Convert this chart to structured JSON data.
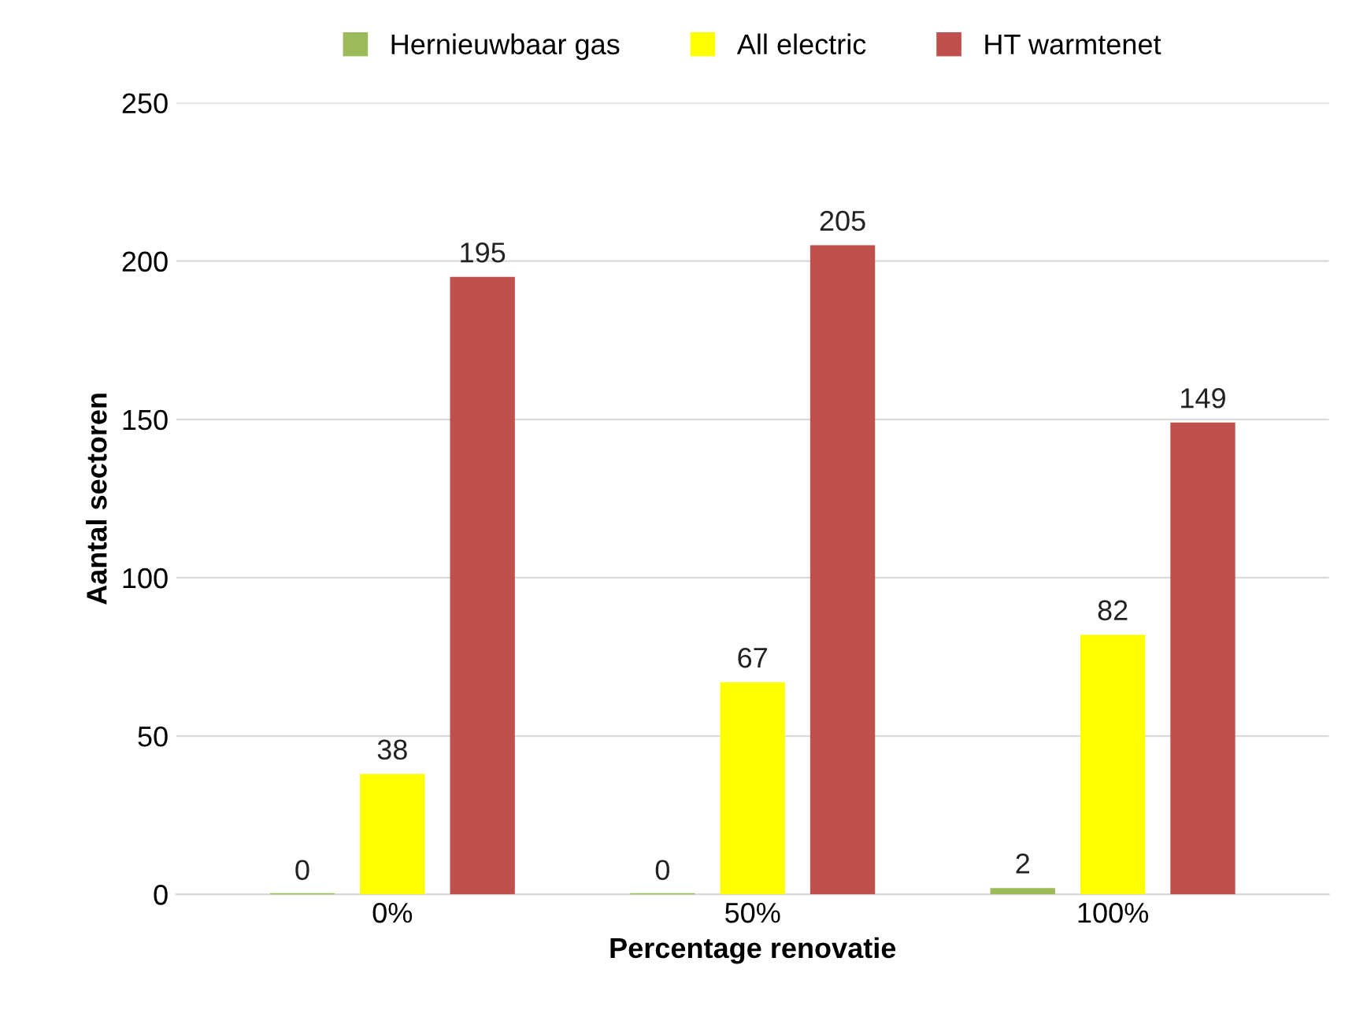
{
  "chart_data": {
    "type": "bar",
    "xlabel": "Percentage renovatie",
    "ylabel": "Aantal sectoren",
    "categories": [
      "0%",
      "50%",
      "100%"
    ],
    "series": [
      {
        "name": "Hernieuwbaar gas",
        "color": "#9bbb59",
        "values": [
          0,
          0,
          2
        ]
      },
      {
        "name": "All electric",
        "color": "#ffff00",
        "values": [
          38,
          67,
          82
        ]
      },
      {
        "name": "HT warmtenet",
        "color": "#c0504d",
        "values": [
          195,
          205,
          149
        ]
      }
    ],
    "ylim": [
      0,
      250
    ],
    "yticks": [
      0,
      50,
      100,
      150,
      200,
      250
    ],
    "grid": "y",
    "legend": "top",
    "data_labels": true
  }
}
